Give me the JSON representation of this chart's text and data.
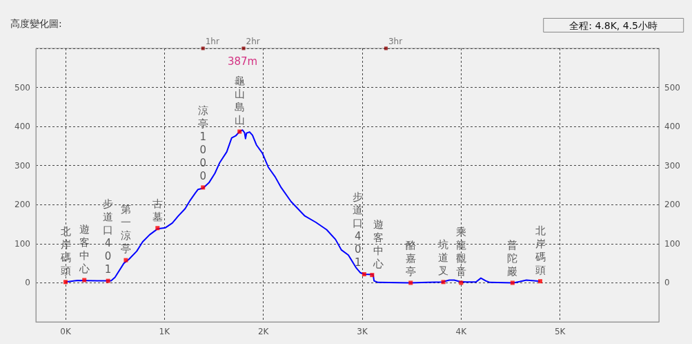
{
  "chart_data": {
    "type": "line",
    "title": "高度變化圖:",
    "subtitle": "全程: 4.8K, 4.5小時",
    "xlim": [
      -0.3,
      6
    ],
    "xticks": [
      {
        "value": 0,
        "label": "0K"
      },
      {
        "value": 1,
        "label": "1K"
      },
      {
        "value": 2,
        "label": "2K"
      },
      {
        "value": 3,
        "label": "3K"
      },
      {
        "value": 4,
        "label": "4K"
      },
      {
        "value": 5,
        "label": "5K"
      },
      {
        "value": 6,
        "label": null
      }
    ],
    "ylim": [
      -100,
      600
    ],
    "yticks": [
      {
        "value": -100,
        "label": null
      },
      0,
      100,
      200,
      300,
      400,
      500,
      {
        "value": 600,
        "label": null
      }
    ],
    "y2lim": [
      -100,
      600
    ],
    "y2ticks": [
      0,
      100,
      200,
      300,
      400,
      500
    ],
    "grid": true,
    "annotations": [
      "387m",
      {
        "text": "1hr",
        "x": 1.39,
        "y": 600
      },
      {
        "text": "2hr",
        "x": 1.8,
        "y": 600
      },
      {
        "text": "3hr",
        "x": 3.24,
        "y": 600
      }
    ],
    "series": [
      {
        "color": "#0000ff",
        "x": [
          0,
          0.12,
          0.32,
          0.46,
          0.5,
          0.59,
          0.64,
          0.72,
          0.78,
          0.85,
          0.93,
          1.01,
          1.08,
          1.14,
          1.21,
          1.26,
          1.31,
          1.34,
          1.39,
          1.45,
          1.51,
          1.56,
          1.63,
          1.68,
          1.72,
          1.76,
          1.79,
          1.81,
          1.82,
          1.83,
          1.86,
          1.89,
          1.93,
          1.99,
          2.05,
          2.12,
          2.18,
          2.28,
          2.42,
          2.53,
          2.64,
          2.73,
          2.79,
          2.86,
          2.94,
          2.98,
          3.02,
          3.11,
          3.12,
          3.16,
          3.49,
          3.66,
          3.81,
          3.88,
          3.93,
          3.99,
          4.05,
          4.15,
          4.2,
          4.25,
          4.29,
          4.53,
          4.59,
          4.66,
          4.8
        ],
        "values": [
          2,
          6,
          5,
          5,
          14,
          50,
          60,
          81,
          105,
          123,
          138,
          141,
          153,
          171,
          190,
          211,
          229,
          239,
          242,
          256,
          280,
          308,
          335,
          371,
          376,
          387,
          391,
          384,
          369,
          383,
          386,
          378,
          353,
          332,
          296,
          271,
          244,
          208,
          171,
          155,
          136,
          111,
          84,
          71,
          38,
          26,
          22,
          21,
          5,
          1,
          0,
          1,
          2,
          7,
          7,
          3,
          2,
          2,
          12,
          5,
          1,
          0,
          3,
          7,
          4
        ]
      },
      {
        "type": "scatter",
        "color": "#ff0000",
        "marker": "square",
        "x": [
          0,
          0.19,
          0.43,
          0.61,
          0.93,
          1.39,
          1.76,
          3.02,
          3.1,
          3.49,
          3.82,
          4.0,
          4.52,
          4.8
        ],
        "values": [
          2,
          7,
          5,
          58,
          140,
          244,
          387,
          22,
          20,
          0,
          2,
          0,
          0,
          4
        ],
        "value_labels": [
          "北岸碼頭",
          "遊客中心",
          "步道口401",
          "第一涼亭",
          "古墓",
          "涼亭1000",
          "龜山島山",
          "步道口401",
          "遊客中心",
          "酪嘉亭",
          "坑道叉",
          "乘龍觀音",
          "普陀巖",
          "北岸碼頭"
        ]
      }
    ]
  }
}
